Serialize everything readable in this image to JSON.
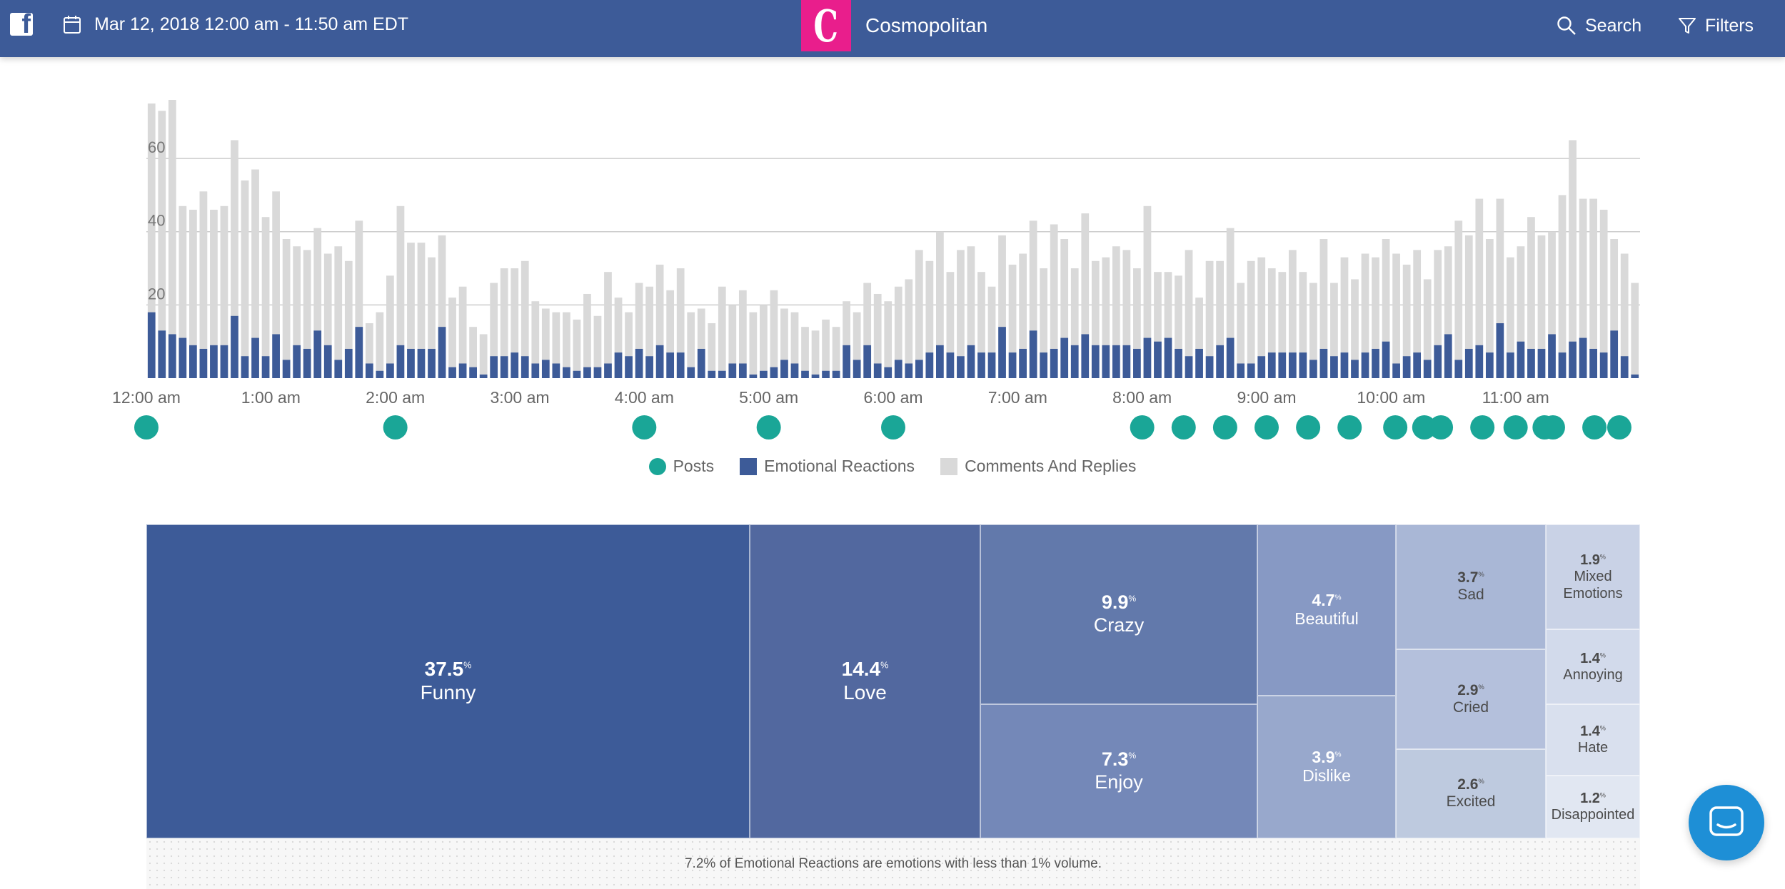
{
  "header": {
    "date_range": "Mar 12, 2018 12:00 am - 11:50 am EDT",
    "brand_letter": "C",
    "brand_name": "Cosmopolitan",
    "search_label": "Search",
    "filters_label": "Filters"
  },
  "colors": {
    "header_bg": "#3d5b98",
    "brand": "#e91e8c",
    "posts": "#1aa697",
    "emotional": "#3d5b98",
    "comments": "#d9d9d9"
  },
  "chart_data": {
    "type": "bar",
    "stacked": true,
    "x_ticks": [
      "12:00 am",
      "1:00 am",
      "2:00 am",
      "3:00 am",
      "4:00 am",
      "5:00 am",
      "6:00 am",
      "7:00 am",
      "8:00 am",
      "9:00 am",
      "10:00 am",
      "11:00 am"
    ],
    "y_ticks": [
      20,
      40,
      60
    ],
    "ylim": [
      0,
      76
    ],
    "interval_minutes": 5,
    "grid": true,
    "legend_position": "bottom-center",
    "legend": [
      "Posts",
      "Emotional Reactions",
      "Comments And Replies"
    ],
    "series": [
      {
        "name": "Emotional Reactions",
        "values": [
          18,
          13,
          12,
          11,
          9,
          8,
          9,
          9,
          17,
          6,
          11,
          6,
          12,
          5,
          9,
          8,
          13,
          9,
          5,
          8,
          14,
          4,
          2,
          4,
          9,
          8,
          8,
          8,
          14,
          3,
          4,
          3,
          1,
          6,
          6,
          7,
          6,
          4,
          5,
          4,
          3,
          2,
          3,
          3,
          4,
          7,
          6,
          8,
          6,
          9,
          7,
          7,
          3,
          8,
          2,
          2,
          4,
          4,
          1,
          2,
          3,
          5,
          4,
          2,
          1,
          2,
          2,
          9,
          5,
          9,
          4,
          3,
          5,
          4,
          5,
          7,
          9,
          7,
          6,
          9,
          7,
          7,
          14,
          7,
          8,
          13,
          7,
          8,
          11,
          9,
          12,
          9,
          9,
          9,
          9,
          8,
          11,
          10,
          11,
          8,
          6,
          8,
          6,
          9,
          11,
          4,
          4,
          6,
          7,
          7,
          7,
          7,
          5,
          8,
          6,
          7,
          5,
          7,
          8,
          10,
          4,
          6,
          7,
          5,
          9,
          12,
          5,
          8,
          9,
          7,
          15,
          7,
          10,
          8,
          8,
          12,
          7,
          10,
          11,
          8,
          7,
          13,
          6,
          1
        ],
        "color": "#3d5b98"
      },
      {
        "name": "Comments And Replies",
        "values": [
          57,
          60,
          64,
          36,
          37,
          43,
          37,
          38,
          48,
          48,
          46,
          38,
          39,
          33,
          27,
          27,
          28,
          25,
          31,
          24,
          29,
          11,
          16,
          24,
          38,
          29,
          29,
          25,
          25,
          19,
          21,
          11,
          11,
          20,
          24,
          23,
          26,
          17,
          14,
          14,
          15,
          14,
          20,
          14,
          25,
          15,
          12,
          18,
          19,
          22,
          17,
          23,
          15,
          11,
          13,
          23,
          16,
          20,
          17,
          18,
          21,
          14,
          14,
          12,
          12,
          14,
          12,
          12,
          13,
          17,
          19,
          18,
          20,
          23,
          30,
          25,
          31,
          22,
          29,
          27,
          22,
          18,
          25,
          24,
          26,
          30,
          23,
          34,
          27,
          21,
          33,
          23,
          24,
          27,
          26,
          22,
          36,
          19,
          18,
          20,
          29,
          14,
          26,
          23,
          30,
          22,
          28,
          27,
          23,
          22,
          28,
          22,
          21,
          30,
          20,
          26,
          22,
          27,
          25,
          28,
          30,
          25,
          28,
          22,
          26,
          24,
          38,
          31,
          40,
          31,
          34,
          26,
          26,
          36,
          31,
          28,
          43,
          55,
          38,
          41,
          39,
          25,
          28,
          25
        ]
      }
    ],
    "post_minutes": [
      0,
      120,
      240,
      300,
      360,
      480,
      500,
      520,
      540,
      560,
      580,
      602,
      616,
      624,
      644,
      660,
      674,
      678,
      698,
      710
    ]
  },
  "emotions": [
    {
      "pct": "37.5",
      "label": "Funny"
    },
    {
      "pct": "14.4",
      "label": "Love"
    },
    {
      "pct": "9.9",
      "label": "Crazy"
    },
    {
      "pct": "7.3",
      "label": "Enjoy"
    },
    {
      "pct": "4.7",
      "label": "Beautiful"
    },
    {
      "pct": "3.9",
      "label": "Dislike"
    },
    {
      "pct": "3.7",
      "label": "Sad"
    },
    {
      "pct": "2.9",
      "label": "Cried"
    },
    {
      "pct": "2.6",
      "label": "Excited"
    },
    {
      "pct": "1.9",
      "label": "Mixed Emotions"
    },
    {
      "pct": "1.4",
      "label": "Annoying"
    },
    {
      "pct": "1.4",
      "label": "Hate"
    },
    {
      "pct": "1.2",
      "label": "Disappointed"
    }
  ],
  "pct_symbol": "%",
  "footnote": "7.2% of Emotional Reactions are emotions with less than 1% volume."
}
